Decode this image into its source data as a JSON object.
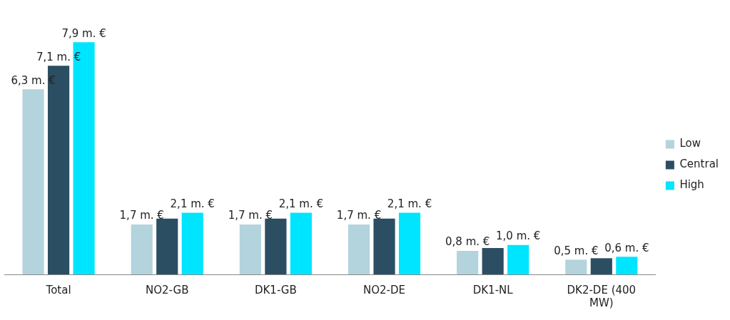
{
  "chart_data": {
    "type": "bar",
    "categories": [
      "Total",
      "NO2-GB",
      "DK1-GB",
      "NO2-DE",
      "DK1-NL",
      "DK2-DE (400 MW)"
    ],
    "series": [
      {
        "name": "Low",
        "color": "#b3d3dd",
        "values": [
          6.3,
          1.7,
          1.7,
          1.7,
          0.8,
          0.5
        ],
        "value_labels": [
          "6,3 m. €",
          "1,7 m. €",
          "1,7 m. €",
          "1,7 m. €",
          "0,8 m. €",
          "0,5 m. €"
        ]
      },
      {
        "name": "Central",
        "color": "#2c4e63",
        "values": [
          7.1,
          1.9,
          1.9,
          1.9,
          0.9,
          0.55
        ],
        "value_labels": [
          "7,1 m. €",
          null,
          null,
          null,
          null,
          null
        ]
      },
      {
        "name": "High",
        "color": "#00e5ff",
        "values": [
          7.9,
          2.1,
          2.1,
          2.1,
          1.0,
          0.6
        ],
        "value_labels": [
          "7,9 m. €",
          "2,1 m. €",
          "2,1 m. €",
          "2,1 m. €",
          "1,0 m. €",
          "0,6 m. €"
        ]
      }
    ],
    "legend": "right",
    "grid": false
  }
}
